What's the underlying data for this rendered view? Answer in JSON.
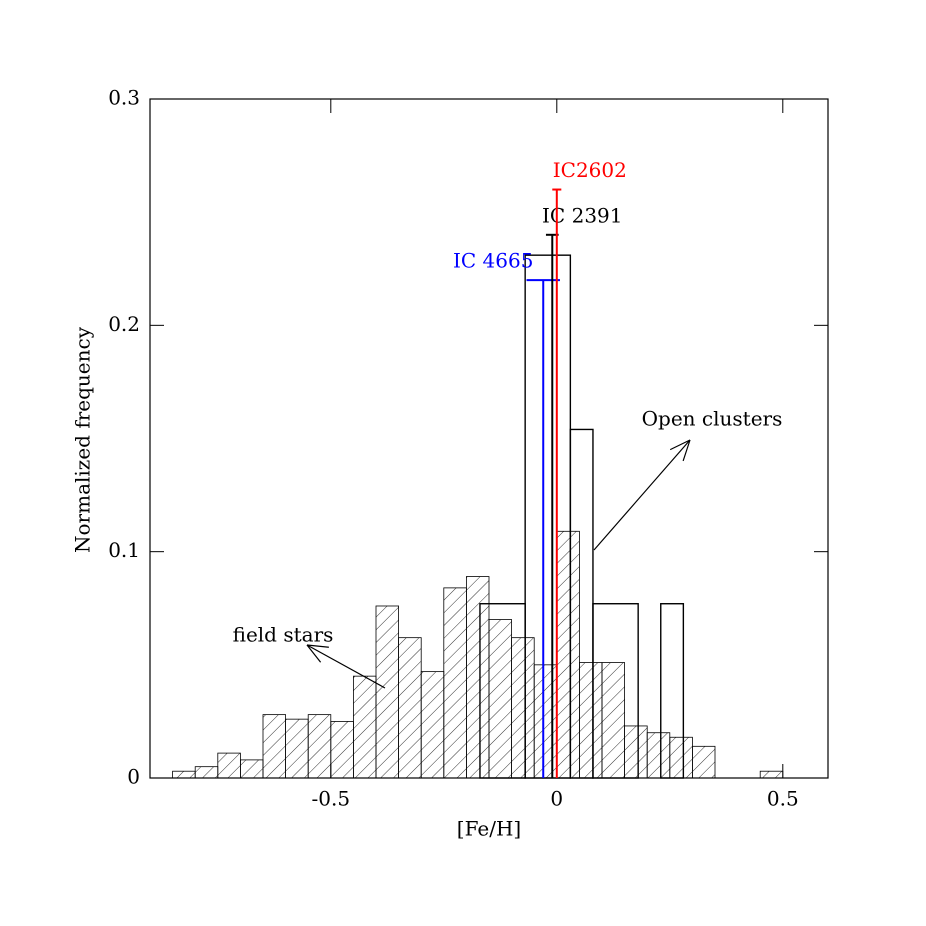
{
  "chart_data": {
    "type": "histogram",
    "xlabel": "[Fe/H]",
    "ylabel": "Normalized frequency",
    "xlim": [
      -0.9,
      0.6
    ],
    "ylim": [
      0,
      0.3
    ],
    "xticks": [
      -0.5,
      0,
      0.5
    ],
    "yticks": [
      0,
      0.1,
      0.2,
      0.3
    ],
    "series": [
      {
        "name": "field stars",
        "color": "#000000",
        "hatch": true,
        "bins": [
          -0.85,
          -0.8,
          -0.75,
          -0.7,
          -0.65,
          -0.6,
          -0.55,
          -0.5,
          -0.45,
          -0.4,
          -0.35,
          -0.3,
          -0.25,
          -0.2,
          -0.15,
          -0.1,
          -0.05,
          0,
          0.05,
          0.1,
          0.15,
          0.2,
          0.25,
          0.3,
          0.35,
          0.4,
          0.45,
          0.5
        ],
        "values": [
          0.003,
          0.005,
          0.011,
          0.008,
          0.028,
          0.026,
          0.028,
          0.025,
          0.045,
          0.076,
          0.062,
          0.047,
          0.084,
          0.089,
          0.07,
          0.062,
          0.05,
          0.109,
          0.051,
          0.051,
          0.023,
          0.02,
          0.018,
          0.014,
          0,
          0,
          0.003
        ]
      },
      {
        "name": "Open clusters",
        "color": "#000000",
        "hatch": false,
        "bins": [
          -0.17,
          -0.07,
          0.03,
          0.08,
          0.18,
          0.23,
          0.28
        ],
        "values": [
          0.077,
          0.231,
          0.154,
          0.077,
          0,
          0.077
        ]
      }
    ],
    "clusters": [
      {
        "name": "IC 4665",
        "x": -0.03,
        "value": 0.22,
        "xerr": 0.037,
        "color": "#0000ff"
      },
      {
        "name": "IC 2391",
        "x": -0.01,
        "value": 0.24,
        "xerr": 0.014,
        "color": "#000000"
      },
      {
        "name": "IC2602",
        "x": 0.0,
        "value": 0.26,
        "xerr": 0.01,
        "color": "#ff0000"
      }
    ]
  }
}
